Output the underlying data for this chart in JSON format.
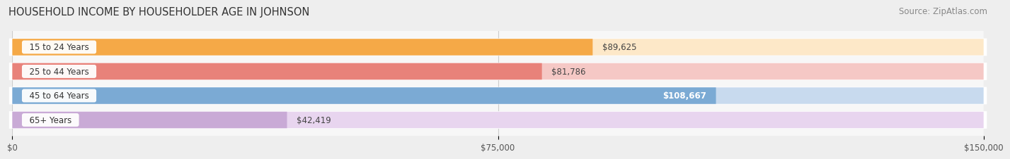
{
  "title": "HOUSEHOLD INCOME BY HOUSEHOLDER AGE IN JOHNSON",
  "source": "Source: ZipAtlas.com",
  "categories": [
    "15 to 24 Years",
    "25 to 44 Years",
    "45 to 64 Years",
    "65+ Years"
  ],
  "values": [
    89625,
    81786,
    108667,
    42419
  ],
  "labels": [
    "$89,625",
    "$81,786",
    "$108,667",
    "$42,419"
  ],
  "bar_colors": [
    "#F5A947",
    "#E8827A",
    "#7BAAD4",
    "#C9AAD6"
  ],
  "bar_bg_colors": [
    "#FDE8C8",
    "#F5C8C5",
    "#C8DAEE",
    "#E8D5EF"
  ],
  "xlim": [
    0,
    150000
  ],
  "xticks": [
    0,
    75000,
    150000
  ],
  "xticklabels": [
    "$0",
    "$75,000",
    "$150,000"
  ],
  "title_fontsize": 10.5,
  "source_fontsize": 8.5,
  "label_fontsize": 8.5,
  "tick_fontsize": 8.5,
  "background_color": "#eeeeee",
  "bar_area_bg": "#f7f7f7",
  "grid_color": "#cccccc",
  "bar_height": 0.68,
  "bar_gap": 0.32,
  "shadow_color": "#dddddd"
}
